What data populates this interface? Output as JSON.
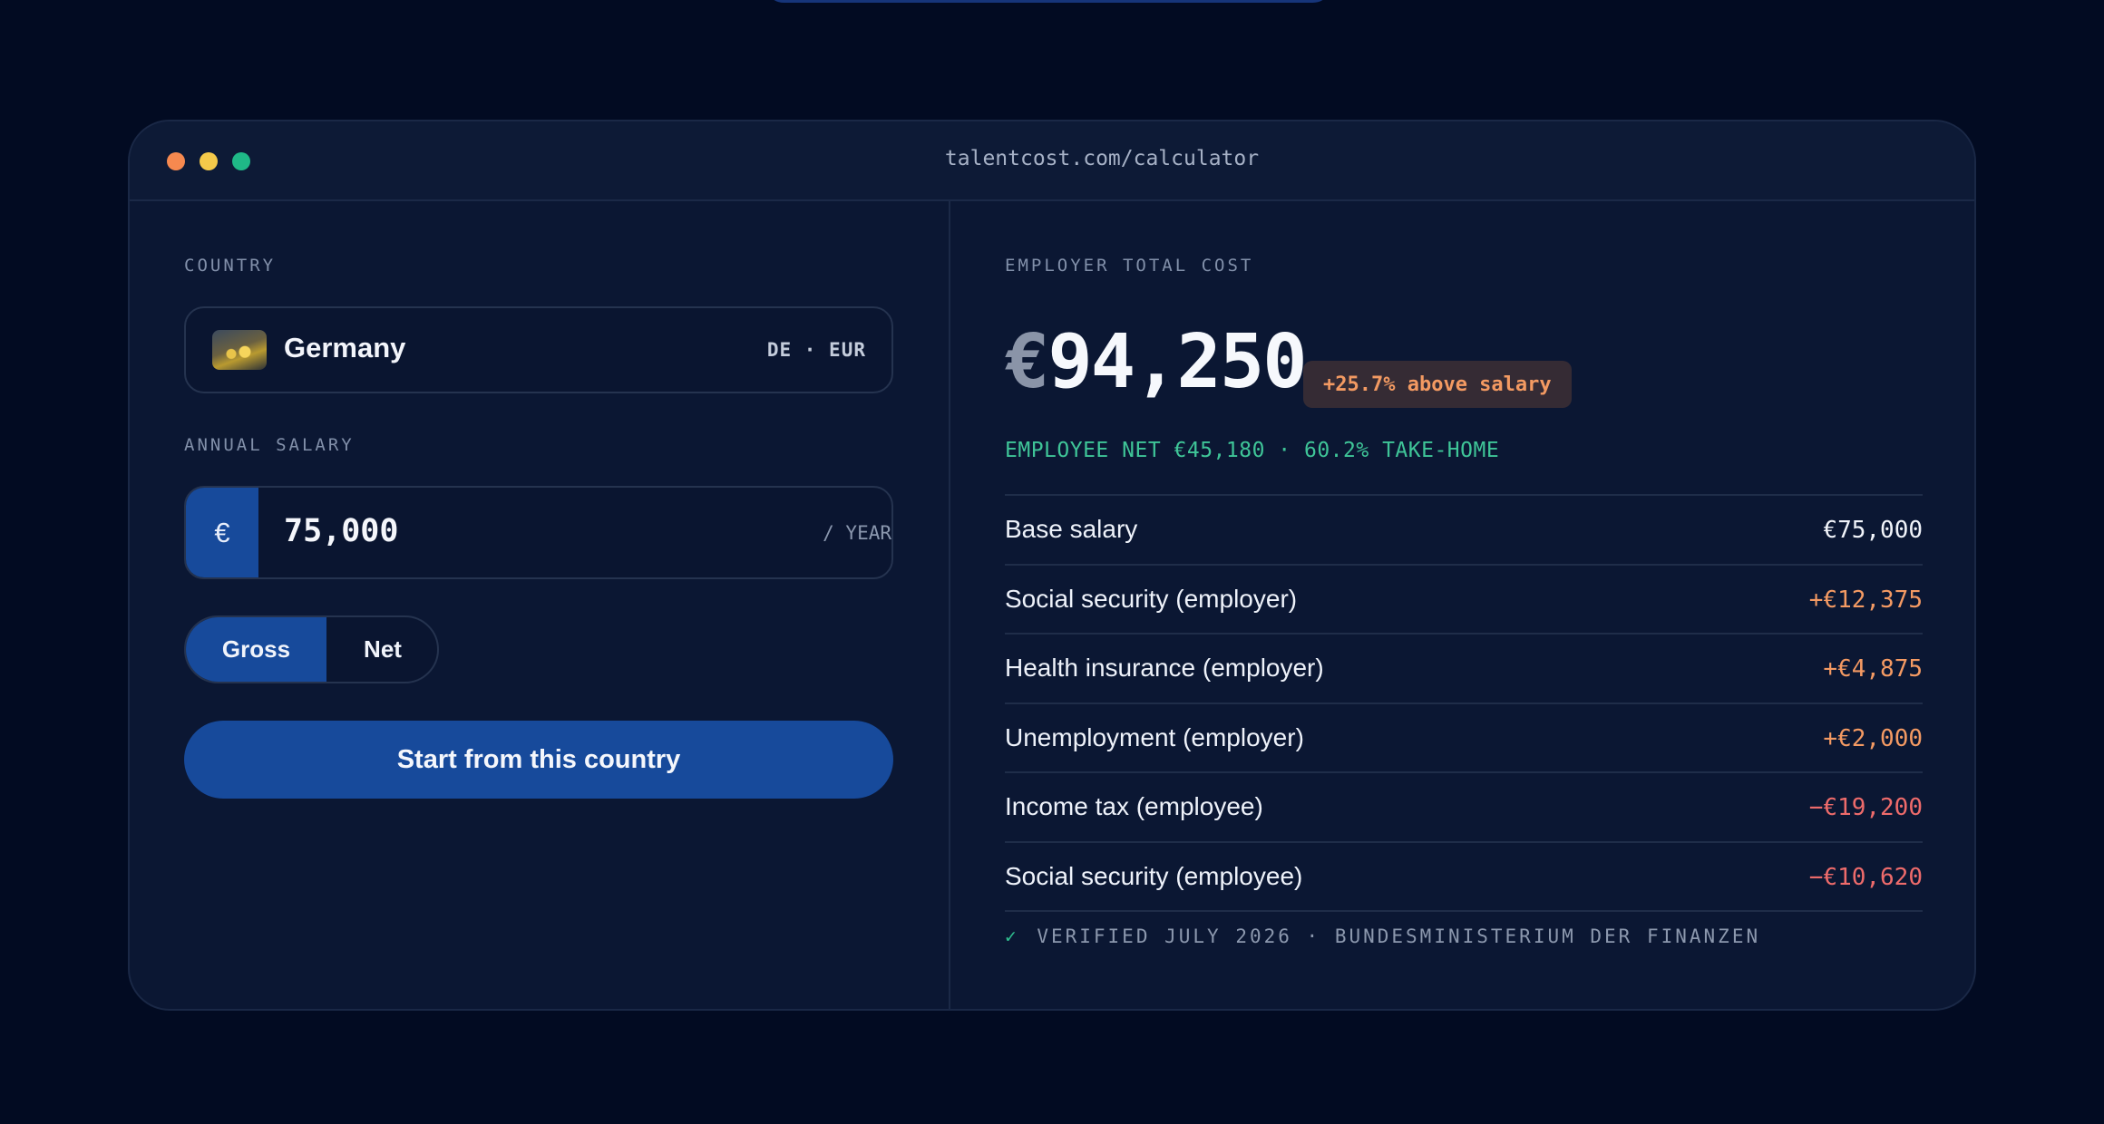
{
  "window": {
    "url": "talentcost.com/calculator"
  },
  "form": {
    "country_label": "COUNTRY",
    "country_name": "Germany",
    "country_code": "DE · EUR",
    "salary_label": "ANNUAL SALARY",
    "currency_symbol": "€",
    "salary_value": "75,000",
    "salary_suffix": "/ YEAR",
    "toggle": {
      "gross": "Gross",
      "net": "Net",
      "selected": "Gross"
    },
    "start_button": "Start from this country"
  },
  "result": {
    "label": "EMPLOYER TOTAL COST",
    "currency_symbol": "€",
    "total": "94,250",
    "badge": "+25.7% above salary",
    "net_line": "EMPLOYEE NET €45,180 · 60.2% TAKE-HOME",
    "rows": [
      {
        "label": "Base salary",
        "value": "€75,000",
        "kind": "neutral"
      },
      {
        "label": "Social security (employer)",
        "value": "+€12,375",
        "kind": "plus"
      },
      {
        "label": "Health insurance (employer)",
        "value": "+€4,875",
        "kind": "plus"
      },
      {
        "label": "Unemployment (employer)",
        "value": "+€2,000",
        "kind": "plus"
      },
      {
        "label": "Income tax (employee)",
        "value": "−€19,200",
        "kind": "minus"
      },
      {
        "label": "Social security (employee)",
        "value": "−€10,620",
        "kind": "minus"
      }
    ],
    "check_icon": "check-icon",
    "verified": "VERIFIED JULY 2026 · BUNDESMINISTERIUM DER FINANZEN"
  },
  "colors": {
    "background": "#020b22",
    "panel": "#0b1733",
    "accent_blue": "#174a9b",
    "positive_green": "#3fc598",
    "cost_orange": "#f49a63",
    "deduction_red": "#ee6b6b"
  }
}
